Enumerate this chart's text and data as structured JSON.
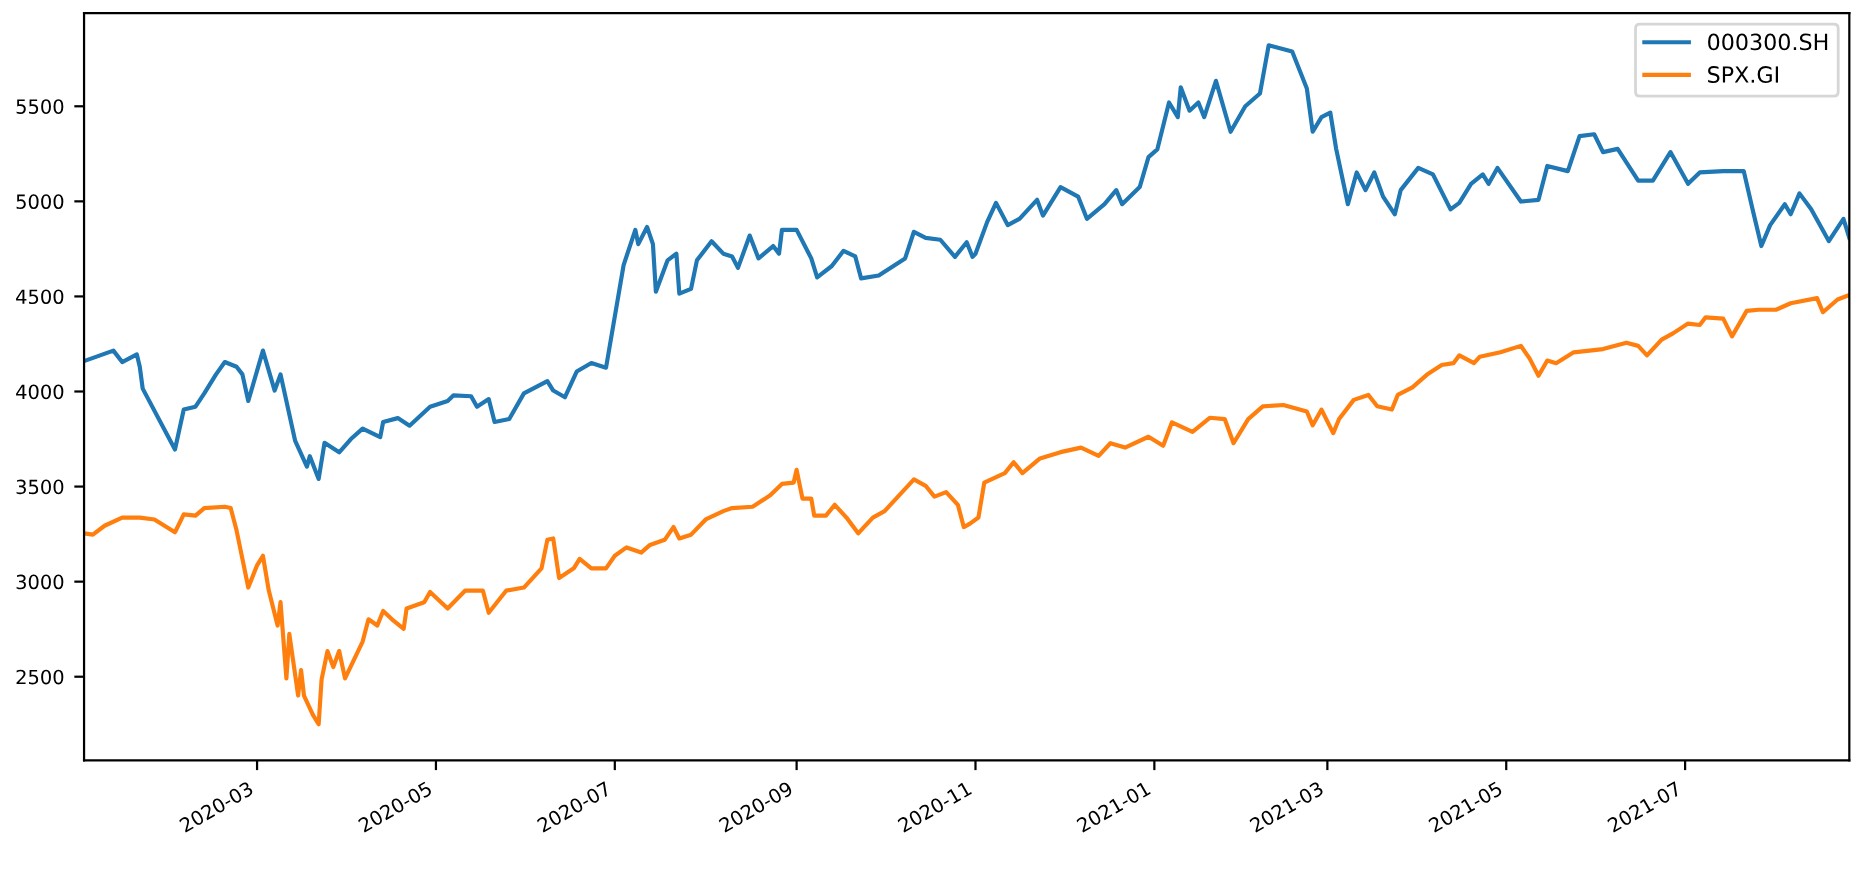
{
  "chart_data": {
    "type": "line",
    "legend": "top right",
    "grid": false,
    "line_style": "solid",
    "marker": "none",
    "xlim": [
      "2020-01-02",
      "2021-08-26"
    ],
    "xticks": [
      {
        "value": "2020-03-01",
        "label": "2020-03"
      },
      {
        "value": "2020-05-01",
        "label": "2020-05"
      },
      {
        "value": "2020-07-01",
        "label": "2020-07"
      },
      {
        "value": "2020-09-01",
        "label": "2020-09"
      },
      {
        "value": "2020-11-01",
        "label": "2020-11"
      },
      {
        "value": "2021-01-01",
        "label": "2021-01"
      },
      {
        "value": "2021-03-01",
        "label": "2021-03"
      },
      {
        "value": "2021-05-01",
        "label": "2021-05"
      },
      {
        "value": "2021-07-01",
        "label": "2021-07"
      }
    ],
    "ylim": [
      2060,
      5990
    ],
    "yticks": [
      2500,
      3000,
      3500,
      4000,
      4500,
      5000,
      5500
    ],
    "series": [
      {
        "name": "000300.SH",
        "color": "#1f77b4",
        "x": [
          "2020-01-02",
          "2020-01-12",
          "2020-01-15",
          "2020-01-20",
          "2020-01-21",
          "2020-01-22",
          "2020-02-02",
          "2020-02-05",
          "2020-02-09",
          "2020-02-12",
          "2020-02-16",
          "2020-02-19",
          "2020-02-23",
          "2020-02-25",
          "2020-02-27",
          "2020-03-03",
          "2020-03-07",
          "2020-03-09",
          "2020-03-14",
          "2020-03-18",
          "2020-03-19",
          "2020-03-22",
          "2020-03-24",
          "2020-03-29",
          "2020-04-02",
          "2020-04-06",
          "2020-04-12",
          "2020-04-13",
          "2020-04-18",
          "2020-04-22",
          "2020-04-29",
          "2020-05-05",
          "2020-05-07",
          "2020-05-13",
          "2020-05-15",
          "2020-05-19",
          "2020-05-21",
          "2020-05-26",
          "2020-05-31",
          "2020-06-08",
          "2020-06-10",
          "2020-06-14",
          "2020-06-18",
          "2020-06-23",
          "2020-06-28",
          "2020-07-04",
          "2020-07-08",
          "2020-07-09",
          "2020-07-12",
          "2020-07-14",
          "2020-07-15",
          "2020-07-19",
          "2020-07-22",
          "2020-07-23",
          "2020-07-27",
          "2020-07-29",
          "2020-08-03",
          "2020-08-07",
          "2020-08-10",
          "2020-08-12",
          "2020-08-16",
          "2020-08-19",
          "2020-08-24",
          "2020-08-26",
          "2020-08-27",
          "2020-09-01",
          "2020-09-06",
          "2020-09-08",
          "2020-09-13",
          "2020-09-17",
          "2020-09-21",
          "2020-09-23",
          "2020-09-29",
          "2020-10-08",
          "2020-10-11",
          "2020-10-15",
          "2020-10-20",
          "2020-10-25",
          "2020-10-29",
          "2020-10-31",
          "2020-11-01",
          "2020-11-05",
          "2020-11-08",
          "2020-11-12",
          "2020-11-16",
          "2020-11-22",
          "2020-11-24",
          "2020-11-30",
          "2020-12-06",
          "2020-12-09",
          "2020-12-15",
          "2020-12-19",
          "2020-12-21",
          "2020-12-27",
          "2020-12-30",
          "2021-01-02",
          "2021-01-06",
          "2021-01-09",
          "2021-01-10",
          "2021-01-13",
          "2021-01-16",
          "2021-01-18",
          "2021-01-22",
          "2021-01-27",
          "2021-02-01",
          "2021-02-06",
          "2021-02-09",
          "2021-02-17",
          "2021-02-22",
          "2021-02-24",
          "2021-02-27",
          "2021-03-02",
          "2021-03-04",
          "2021-03-08",
          "2021-03-11",
          "2021-03-14",
          "2021-03-17",
          "2021-03-20",
          "2021-03-24",
          "2021-03-26",
          "2021-04-01",
          "2021-04-06",
          "2021-04-12",
          "2021-04-15",
          "2021-04-19",
          "2021-04-23",
          "2021-04-25",
          "2021-04-28",
          "2021-05-06",
          "2021-05-12",
          "2021-05-15",
          "2021-05-22",
          "2021-05-26",
          "2021-05-31",
          "2021-06-03",
          "2021-06-08",
          "2021-06-15",
          "2021-06-20",
          "2021-06-26",
          "2021-07-02",
          "2021-07-06",
          "2021-07-14",
          "2021-07-21",
          "2021-07-24",
          "2021-07-27",
          "2021-07-30",
          "2021-08-04",
          "2021-08-06",
          "2021-08-09",
          "2021-08-13",
          "2021-08-19",
          "2021-08-24",
          "2021-08-26"
        ],
        "values": [
          4160,
          4215,
          4155,
          4195,
          4130,
          4015,
          3695,
          3905,
          3920,
          3990,
          4090,
          4155,
          4130,
          4090,
          3950,
          4215,
          4005,
          4090,
          3740,
          3605,
          3660,
          3540,
          3730,
          3680,
          3750,
          3805,
          3760,
          3840,
          3860,
          3820,
          3920,
          3950,
          3980,
          3975,
          3920,
          3960,
          3840,
          3855,
          3990,
          4055,
          4005,
          3970,
          4105,
          4150,
          4125,
          4665,
          4850,
          4775,
          4865,
          4775,
          4525,
          4690,
          4725,
          4515,
          4540,
          4690,
          4790,
          4725,
          4710,
          4650,
          4820,
          4700,
          4765,
          4725,
          4850,
          4850,
          4700,
          4600,
          4660,
          4740,
          4710,
          4595,
          4610,
          4700,
          4840,
          4808,
          4798,
          4708,
          4785,
          4708,
          4724,
          4892,
          4992,
          4875,
          4908,
          5008,
          4925,
          5075,
          5025,
          4908,
          4985,
          5059,
          4985,
          5075,
          5233,
          5273,
          5520,
          5443,
          5600,
          5477,
          5520,
          5443,
          5634,
          5366,
          5500,
          5567,
          5821,
          5788,
          5594,
          5366,
          5443,
          5467,
          5276,
          4985,
          5152,
          5059,
          5152,
          5025,
          4932,
          5059,
          5176,
          5142,
          4958,
          4992,
          5092,
          5142,
          5092,
          5176,
          4999,
          5008,
          5186,
          5159,
          5343,
          5353,
          5259,
          5276,
          5109,
          5109,
          5259,
          5092,
          5152,
          5159,
          5159,
          4958,
          4765,
          4875,
          4985,
          4932,
          5042,
          4958,
          4791,
          4908,
          4808
        ]
      },
      {
        "name": "SPX.GI",
        "color": "#ff7f0e",
        "x": [
          "2020-01-02",
          "2020-01-05",
          "2020-01-09",
          "2020-01-15",
          "2020-01-21",
          "2020-01-26",
          "2020-02-02",
          "2020-02-05",
          "2020-02-09",
          "2020-02-12",
          "2020-02-19",
          "2020-02-21",
          "2020-02-23",
          "2020-02-25",
          "2020-02-27",
          "2020-03-01",
          "2020-03-03",
          "2020-03-05",
          "2020-03-08",
          "2020-03-09",
          "2020-03-11",
          "2020-03-12",
          "2020-03-15",
          "2020-03-16",
          "2020-03-17",
          "2020-03-20",
          "2020-03-22",
          "2020-03-23",
          "2020-03-25",
          "2020-03-27",
          "2020-03-29",
          "2020-03-31",
          "2020-04-06",
          "2020-04-08",
          "2020-04-11",
          "2020-04-13",
          "2020-04-16",
          "2020-04-20",
          "2020-04-21",
          "2020-04-27",
          "2020-04-29",
          "2020-05-05",
          "2020-05-11",
          "2020-05-17",
          "2020-05-19",
          "2020-05-25",
          "2020-05-31",
          "2020-06-06",
          "2020-06-08",
          "2020-06-10",
          "2020-06-12",
          "2020-06-17",
          "2020-06-19",
          "2020-06-23",
          "2020-06-28",
          "2020-07-01",
          "2020-07-05",
          "2020-07-10",
          "2020-07-13",
          "2020-07-18",
          "2020-07-21",
          "2020-07-23",
          "2020-07-27",
          "2020-08-01",
          "2020-08-07",
          "2020-08-10",
          "2020-08-17",
          "2020-08-23",
          "2020-08-27",
          "2020-08-31",
          "2020-09-01",
          "2020-09-03",
          "2020-09-06",
          "2020-09-07",
          "2020-09-11",
          "2020-09-14",
          "2020-09-18",
          "2020-09-22",
          "2020-09-27",
          "2020-10-01",
          "2020-10-11",
          "2020-10-15",
          "2020-10-18",
          "2020-10-22",
          "2020-10-26",
          "2020-10-28",
          "2020-10-30",
          "2020-11-02",
          "2020-11-04",
          "2020-11-11",
          "2020-11-14",
          "2020-11-17",
          "2020-11-23",
          "2020-11-30",
          "2020-12-07",
          "2020-12-13",
          "2020-12-17",
          "2020-12-22",
          "2020-12-30",
          "2021-01-04",
          "2021-01-07",
          "2021-01-14",
          "2021-01-20",
          "2021-01-25",
          "2021-01-28",
          "2021-02-02",
          "2021-02-07",
          "2021-02-14",
          "2021-02-22",
          "2021-02-24",
          "2021-02-27",
          "2021-03-03",
          "2021-03-05",
          "2021-03-10",
          "2021-03-15",
          "2021-03-18",
          "2021-03-23",
          "2021-03-25",
          "2021-03-30",
          "2021-04-04",
          "2021-04-09",
          "2021-04-13",
          "2021-04-15",
          "2021-04-20",
          "2021-04-22",
          "2021-04-29",
          "2021-05-06",
          "2021-05-09",
          "2021-05-12",
          "2021-05-15",
          "2021-05-18",
          "2021-05-24",
          "2021-06-03",
          "2021-06-11",
          "2021-06-15",
          "2021-06-18",
          "2021-06-23",
          "2021-06-27",
          "2021-07-02",
          "2021-07-06",
          "2021-07-08",
          "2021-07-14",
          "2021-07-17",
          "2021-07-22",
          "2021-07-26",
          "2021-08-01",
          "2021-08-06",
          "2021-08-15",
          "2021-08-17",
          "2021-08-22",
          "2021-08-26"
        ],
        "values": [
          3254,
          3247,
          3294,
          3337,
          3337,
          3327,
          3260,
          3354,
          3347,
          3387,
          3394,
          3387,
          3270,
          3120,
          2969,
          3086,
          3136,
          2953,
          2769,
          2892,
          2491,
          2725,
          2401,
          2535,
          2401,
          2301,
          2250,
          2485,
          2635,
          2551,
          2635,
          2491,
          2685,
          2802,
          2769,
          2846,
          2802,
          2752,
          2859,
          2892,
          2946,
          2859,
          2953,
          2953,
          2836,
          2953,
          2969,
          3070,
          3220,
          3227,
          3019,
          3070,
          3120,
          3070,
          3070,
          3136,
          3180,
          3153,
          3193,
          3220,
          3287,
          3227,
          3247,
          3327,
          3371,
          3387,
          3394,
          3454,
          3514,
          3521,
          3588,
          3437,
          3437,
          3347,
          3347,
          3404,
          3337,
          3254,
          3337,
          3371,
          3538,
          3504,
          3447,
          3471,
          3404,
          3287,
          3304,
          3337,
          3521,
          3571,
          3628,
          3571,
          3648,
          3681,
          3705,
          3661,
          3728,
          3705,
          3762,
          3715,
          3838,
          3788,
          3862,
          3855,
          3728,
          3855,
          3922,
          3929,
          3895,
          3822,
          3905,
          3781,
          3855,
          3956,
          3982,
          3922,
          3905,
          3982,
          4022,
          4089,
          4139,
          4149,
          4190,
          4149,
          4183,
          4206,
          4240,
          4173,
          4083,
          4163,
          4149,
          4206,
          4223,
          4256,
          4240,
          4190,
          4273,
          4307,
          4357,
          4350,
          4390,
          4383,
          4290,
          4424,
          4430,
          4430,
          4464,
          4491,
          4417,
          4484,
          4507
        ]
      }
    ]
  }
}
